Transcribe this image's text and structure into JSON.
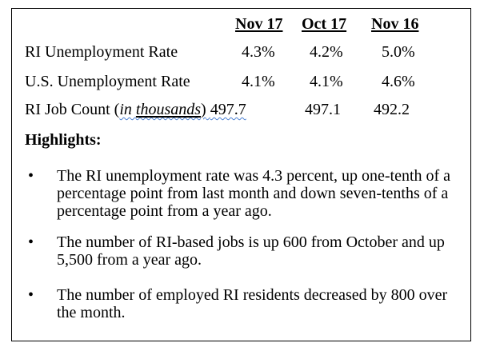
{
  "table": {
    "headers": [
      "Nov 17",
      "Oct 17",
      "Nov 16"
    ],
    "rows": [
      {
        "label": "RI Unemployment Rate",
        "values": [
          "4.3%",
          "4.2%",
          "5.0%"
        ]
      },
      {
        "label": "U.S. Unemployment Rate",
        "values": [
          "4.1%",
          "4.1%",
          "4.6%"
        ]
      },
      {
        "label_prefix": "RI Job Count (",
        "label_italic_in": "in ",
        "label_italic_thousands": "thousands",
        "label_suffix": ")",
        "values": [
          "497.7",
          "497.1",
          "492.2"
        ]
      }
    ]
  },
  "highlights": {
    "title": "Highlights:",
    "bullet_glyph": "•",
    "items": [
      "The RI unemployment rate was 4.3 percent, up one-tenth of a percentage point from last month and down seven-tenths of a percentage point from a year ago.",
      "The number of RI-based jobs is up 600 from October and up 5,500 from a year ago.",
      "The number of employed RI residents decreased by 800 over the month."
    ]
  }
}
